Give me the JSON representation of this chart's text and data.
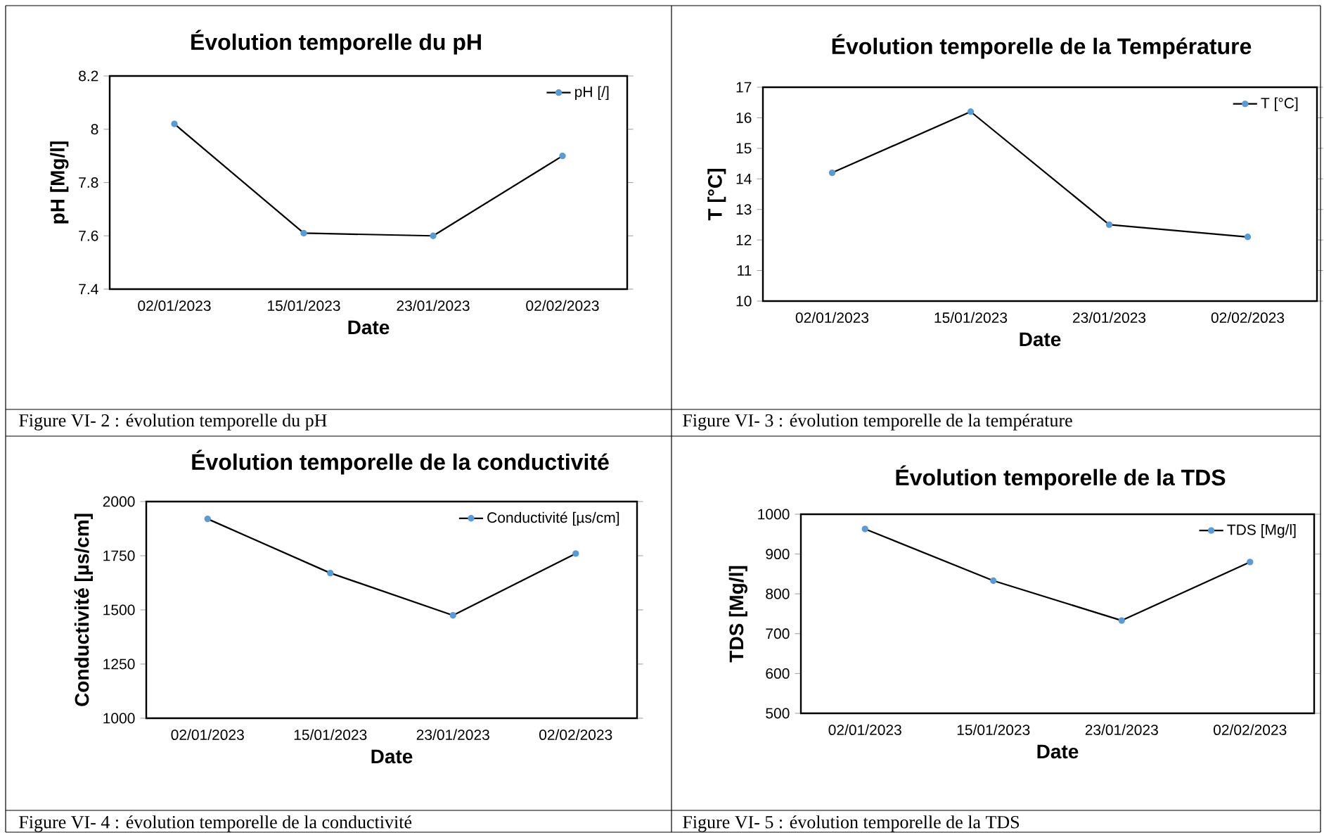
{
  "chart_data": [
    {
      "type": "line",
      "title": "Évolution temporelle du pH",
      "xlabel": "Date",
      "ylabel": "pH [Mg/l]",
      "categories": [
        "02/01/2023",
        "15/01/2023",
        "23/01/2023",
        "02/02/2023"
      ],
      "series": [
        {
          "name": "pH [/]",
          "color": "#000000",
          "values": [
            8.02,
            7.61,
            7.6,
            7.9
          ]
        }
      ],
      "ylim": [
        7.4,
        8.2
      ],
      "yticks": [
        {
          "value": 7.4,
          "label": "7.4"
        },
        {
          "value": 7.6,
          "label": "7.6"
        },
        {
          "value": 7.8,
          "label": "7.8"
        },
        {
          "value": 8,
          "label": "8"
        },
        {
          "value": 8.2,
          "label": "8.2"
        }
      ],
      "legend": "top right",
      "marker": "circle",
      "line_style": "solid",
      "grid": false,
      "annotations": [
        "Figure VI- 2 : évolution temporelle du pH"
      ]
    },
    {
      "type": "line",
      "title": "Évolution temporelle de la Température",
      "xlabel": "Date",
      "ylabel": "T [°C]",
      "categories": [
        "02/01/2023",
        "15/01/2023",
        "23/01/2023",
        "02/02/2023"
      ],
      "series": [
        {
          "name": "T [°C]",
          "color": "#000000",
          "values": [
            14.2,
            16.2,
            12.5,
            12.1
          ]
        }
      ],
      "ylim": [
        10,
        17
      ],
      "yticks": [
        10,
        11,
        12,
        13,
        14,
        15,
        16,
        17
      ],
      "legend": "top right",
      "marker": "circle",
      "line_style": "solid",
      "grid": false,
      "annotations": [
        "Figure VI- 3 : évolution temporelle de la température"
      ]
    },
    {
      "type": "line",
      "title": "Évolution temporelle de la conductivité",
      "xlabel": "Date",
      "ylabel": "Conductivité [µs/cm]",
      "categories": [
        "02/01/2023",
        "15/01/2023",
        "23/01/2023",
        "02/02/2023"
      ],
      "series": [
        {
          "name": "Conductivité [µs/cm]",
          "color": "#000000",
          "values": [
            1920,
            1670,
            1475,
            1760
          ]
        }
      ],
      "ylim": [
        1000,
        2000
      ],
      "yticks": [
        1000,
        1250,
        1500,
        1750,
        2000
      ],
      "legend": "top right",
      "marker": "circle",
      "line_style": "solid",
      "grid": false,
      "annotations": [
        "Figure VI- 4 : évolution temporelle de la conductivité"
      ]
    },
    {
      "type": "line",
      "title": "Évolution temporelle de la TDS",
      "xlabel": "Date",
      "ylabel": "TDS [Mg/l]",
      "categories": [
        "02/01/2023",
        "15/01/2023",
        "23/01/2023",
        "02/02/2023"
      ],
      "series": [
        {
          "name": "TDS [Mg/l]",
          "color": "#000000",
          "values": [
            963,
            833,
            733,
            880
          ]
        }
      ],
      "ylim": [
        500,
        1000
      ],
      "yticks": [
        500,
        600,
        700,
        800,
        900,
        1000
      ],
      "legend": "top right",
      "marker": "circle",
      "line_style": "solid",
      "grid": false,
      "annotations": [
        "Figure VI- 5 : évolution temporelle de la TDS"
      ]
    }
  ]
}
